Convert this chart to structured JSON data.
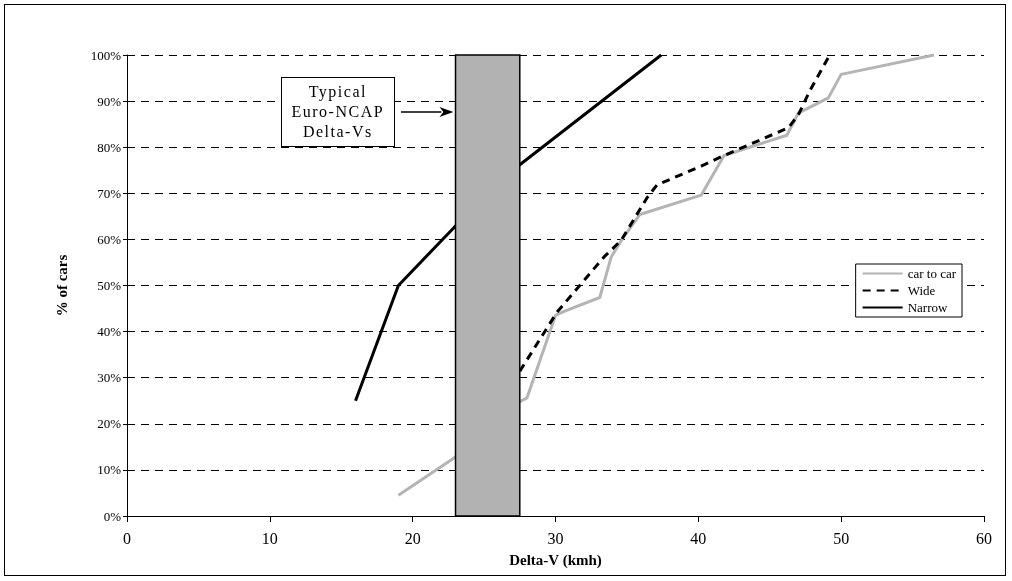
{
  "chart_data": {
    "type": "line",
    "xlabel": "Delta-V (kmh)",
    "ylabel": "% of cars",
    "xlim": [
      0,
      60
    ],
    "xticks": [
      0,
      10,
      20,
      30,
      40,
      50,
      60
    ],
    "ylim": [
      0,
      100
    ],
    "yticks": [
      {
        "value": 0,
        "label": "0%"
      },
      {
        "value": 10,
        "label": "10%"
      },
      {
        "value": 20,
        "label": "20%"
      },
      {
        "value": 30,
        "label": "30%"
      },
      {
        "value": 40,
        "label": "40%"
      },
      {
        "value": 50,
        "label": "50%"
      },
      {
        "value": 60,
        "label": "60%"
      },
      {
        "value": 70,
        "label": "70%"
      },
      {
        "value": 80,
        "label": "80%"
      },
      {
        "value": 90,
        "label": "90%"
      },
      {
        "value": 100,
        "label": "100%"
      }
    ],
    "grid": "y",
    "legend": "right",
    "marker": "none",
    "series": [
      {
        "name": "car to car",
        "color": "#b4b4b4",
        "line_style": "solid",
        "x": [
          19,
          22.9,
          27.5,
          28,
          30,
          30.6,
          33.1,
          33.9,
          34.7,
          35.9,
          40.2,
          41.8,
          46.2,
          47,
          49.1,
          50,
          56.5
        ],
        "values": [
          4.5,
          12.6,
          24.8,
          25.6,
          43.5,
          44.4,
          47.4,
          56.2,
          60.2,
          65.4,
          69.6,
          78.2,
          82.6,
          87.4,
          90.7,
          95.8,
          100
        ]
      },
      {
        "name": "Wide",
        "color": "#000000",
        "line_style": "dashed",
        "x": [
          27.5,
          30.1,
          33.4,
          34.6,
          36.4,
          37.1,
          40.2,
          41.8,
          46.3,
          47,
          47.8,
          49.2
        ],
        "values": [
          31.4,
          44.2,
          56.2,
          59.8,
          69,
          71.8,
          75.9,
          78.2,
          84.2,
          87,
          92.2,
          100
        ]
      },
      {
        "name": "Narrow",
        "color": "#000000",
        "line_style": "solid",
        "x": [
          16,
          19,
          22.9,
          27.5,
          37.4
        ],
        "values": [
          25,
          50,
          62.6,
          76.2,
          100
        ]
      }
    ],
    "bands": [
      {
        "axis": "x",
        "from": 23,
        "to": 27.5,
        "color": "#b2b2b2"
      }
    ],
    "annotations": [
      "Typical\nEuro-NCAP\nDelta-Vs"
    ]
  }
}
